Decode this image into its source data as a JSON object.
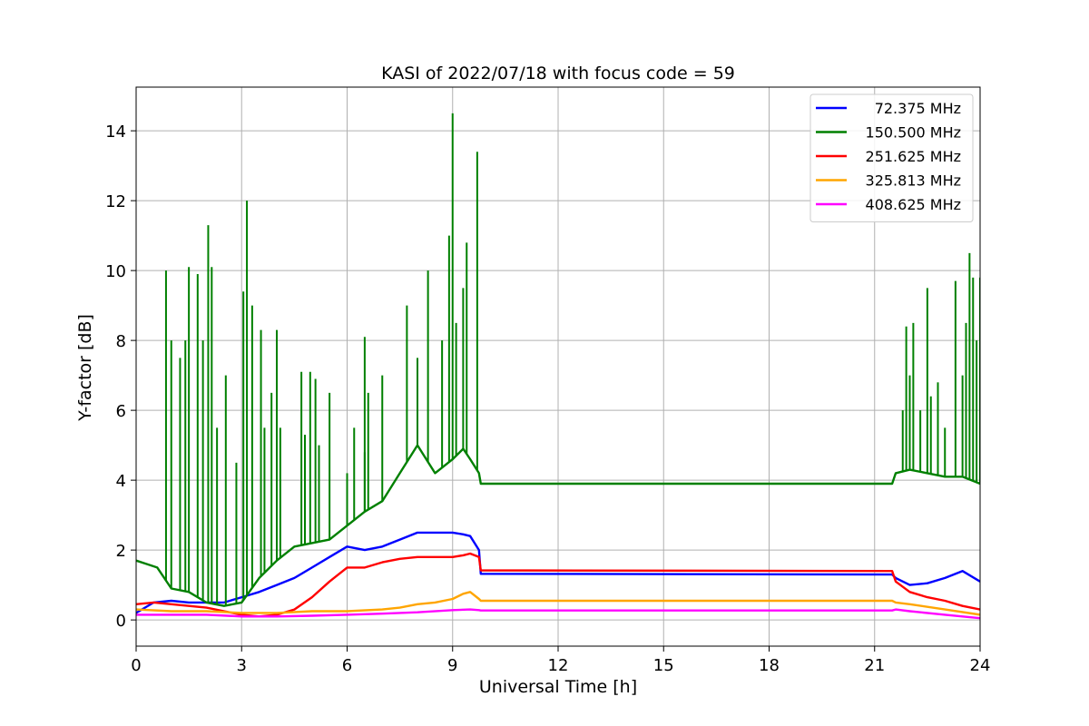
{
  "chart_data": {
    "type": "line",
    "title": "KASI of 2022/07/18 with focus code = 59",
    "xlabel": "Universal Time [h]",
    "ylabel": "Y-factor [dB]",
    "xlim": [
      0,
      24
    ],
    "ylim": [
      -0.75,
      15.25
    ],
    "xticks": [
      0,
      3,
      6,
      9,
      12,
      15,
      18,
      21,
      24
    ],
    "yticks": [
      0,
      2,
      4,
      6,
      8,
      10,
      12,
      14
    ],
    "grid": true,
    "legend_position": "top-right",
    "series": [
      {
        "name": "72.375 MHz",
        "color": "#0000ff",
        "x": [
          0,
          0.5,
          1,
          1.5,
          2,
          2.5,
          3,
          3.5,
          4,
          4.5,
          5,
          5.5,
          6,
          6.5,
          7,
          7.5,
          8,
          8.5,
          9,
          9.3,
          9.5,
          9.75,
          9.8,
          21.5,
          21.6,
          22,
          22.5,
          23,
          23.5,
          24
        ],
        "y": [
          0.2,
          0.5,
          0.55,
          0.5,
          0.5,
          0.5,
          0.65,
          0.8,
          1.0,
          1.2,
          1.5,
          1.8,
          2.1,
          2.0,
          2.1,
          2.3,
          2.5,
          2.5,
          2.5,
          2.45,
          2.4,
          2.0,
          1.32,
          1.3,
          1.2,
          1.0,
          1.05,
          1.2,
          1.4,
          1.1
        ]
      },
      {
        "name": "150.500 MHz",
        "color": "#008000",
        "x": [
          0,
          0.3,
          0.6,
          1,
          1.5,
          2,
          2.5,
          3,
          3.5,
          4,
          4.5,
          5,
          5.5,
          6,
          6.5,
          7,
          7.5,
          8,
          8.5,
          9,
          9.3,
          9.5,
          9.75,
          9.8,
          21.5,
          21.6,
          22,
          22.5,
          23,
          23.5,
          24
        ],
        "y": [
          1.7,
          1.6,
          1.5,
          0.9,
          0.8,
          0.5,
          0.4,
          0.5,
          1.2,
          1.7,
          2.1,
          2.2,
          2.3,
          2.7,
          3.1,
          3.4,
          4.2,
          5.0,
          4.2,
          4.6,
          4.9,
          4.6,
          4.2,
          3.9,
          3.9,
          4.2,
          4.3,
          4.2,
          4.1,
          4.1,
          3.9
        ],
        "spikes": [
          {
            "x": 0.85,
            "y": 10.0
          },
          {
            "x": 1.0,
            "y": 8.0
          },
          {
            "x": 1.25,
            "y": 7.5
          },
          {
            "x": 1.4,
            "y": 8.0
          },
          {
            "x": 1.5,
            "y": 10.1
          },
          {
            "x": 1.75,
            "y": 9.9
          },
          {
            "x": 1.9,
            "y": 8.0
          },
          {
            "x": 2.05,
            "y": 11.3
          },
          {
            "x": 2.15,
            "y": 10.1
          },
          {
            "x": 2.3,
            "y": 5.5
          },
          {
            "x": 2.55,
            "y": 7.0
          },
          {
            "x": 2.85,
            "y": 4.5
          },
          {
            "x": 3.05,
            "y": 9.4
          },
          {
            "x": 3.15,
            "y": 12.0
          },
          {
            "x": 3.3,
            "y": 9.0
          },
          {
            "x": 3.55,
            "y": 8.3
          },
          {
            "x": 3.65,
            "y": 5.5
          },
          {
            "x": 3.85,
            "y": 6.5
          },
          {
            "x": 4.0,
            "y": 8.3
          },
          {
            "x": 4.1,
            "y": 5.5
          },
          {
            "x": 4.7,
            "y": 7.1
          },
          {
            "x": 4.8,
            "y": 5.3
          },
          {
            "x": 4.95,
            "y": 7.1
          },
          {
            "x": 5.1,
            "y": 6.9
          },
          {
            "x": 5.2,
            "y": 5.0
          },
          {
            "x": 5.5,
            "y": 6.5
          },
          {
            "x": 6.0,
            "y": 4.2
          },
          {
            "x": 6.2,
            "y": 5.5
          },
          {
            "x": 6.5,
            "y": 4.8
          },
          {
            "x": 6.5,
            "y": 8.1
          },
          {
            "x": 6.6,
            "y": 6.5
          },
          {
            "x": 7.0,
            "y": 7.0
          },
          {
            "x": 7.7,
            "y": 9.0
          },
          {
            "x": 8.0,
            "y": 7.5
          },
          {
            "x": 8.3,
            "y": 10.0
          },
          {
            "x": 8.7,
            "y": 8.0
          },
          {
            "x": 8.9,
            "y": 11.0
          },
          {
            "x": 9.0,
            "y": 14.5
          },
          {
            "x": 9.1,
            "y": 8.5
          },
          {
            "x": 9.3,
            "y": 9.5
          },
          {
            "x": 9.4,
            "y": 10.8
          },
          {
            "x": 9.7,
            "y": 13.4
          },
          {
            "x": 21.8,
            "y": 6.0
          },
          {
            "x": 21.9,
            "y": 8.4
          },
          {
            "x": 22.0,
            "y": 7.0
          },
          {
            "x": 22.1,
            "y": 8.5
          },
          {
            "x": 22.3,
            "y": 6.0
          },
          {
            "x": 22.5,
            "y": 9.5
          },
          {
            "x": 22.6,
            "y": 6.4
          },
          {
            "x": 22.8,
            "y": 6.8
          },
          {
            "x": 23.0,
            "y": 5.5
          },
          {
            "x": 23.3,
            "y": 9.7
          },
          {
            "x": 23.5,
            "y": 7.0
          },
          {
            "x": 23.6,
            "y": 8.5
          },
          {
            "x": 23.7,
            "y": 10.5
          },
          {
            "x": 23.8,
            "y": 9.8
          },
          {
            "x": 23.9,
            "y": 8.0
          },
          {
            "x": 24.0,
            "y": 9.8
          }
        ]
      },
      {
        "name": "251.625 MHz",
        "color": "#ff0000",
        "x": [
          0,
          0.5,
          1,
          1.5,
          2,
          2.5,
          3,
          3.5,
          4,
          4.5,
          5,
          5.5,
          6,
          6.5,
          7,
          7.5,
          8,
          8.5,
          9,
          9.3,
          9.5,
          9.75,
          9.8,
          21.5,
          21.6,
          22,
          22.5,
          23,
          23.5,
          24
        ],
        "y": [
          0.45,
          0.5,
          0.45,
          0.4,
          0.35,
          0.25,
          0.15,
          0.1,
          0.15,
          0.3,
          0.65,
          1.1,
          1.5,
          1.5,
          1.65,
          1.75,
          1.8,
          1.8,
          1.8,
          1.85,
          1.9,
          1.8,
          1.42,
          1.4,
          1.1,
          0.8,
          0.65,
          0.55,
          0.4,
          0.3
        ]
      },
      {
        "name": "325.813 MHz",
        "color": "#ffa500",
        "x": [
          0,
          1,
          2,
          3,
          4,
          5,
          6,
          7,
          7.5,
          8,
          8.5,
          9,
          9.3,
          9.5,
          9.75,
          9.8,
          21.5,
          21.6,
          22,
          23,
          24
        ],
        "y": [
          0.3,
          0.25,
          0.25,
          0.2,
          0.2,
          0.25,
          0.25,
          0.3,
          0.35,
          0.45,
          0.5,
          0.6,
          0.75,
          0.8,
          0.6,
          0.55,
          0.55,
          0.5,
          0.45,
          0.3,
          0.15
        ]
      },
      {
        "name": "408.625 MHz",
        "color": "#ff00ff",
        "x": [
          0,
          1,
          2,
          3,
          4,
          5,
          6,
          7,
          8,
          9,
          9.5,
          9.75,
          9.8,
          21.5,
          21.6,
          22,
          23,
          24
        ],
        "y": [
          0.15,
          0.15,
          0.15,
          0.1,
          0.1,
          0.12,
          0.15,
          0.18,
          0.22,
          0.28,
          0.3,
          0.28,
          0.27,
          0.27,
          0.3,
          0.25,
          0.15,
          0.05
        ]
      }
    ]
  }
}
